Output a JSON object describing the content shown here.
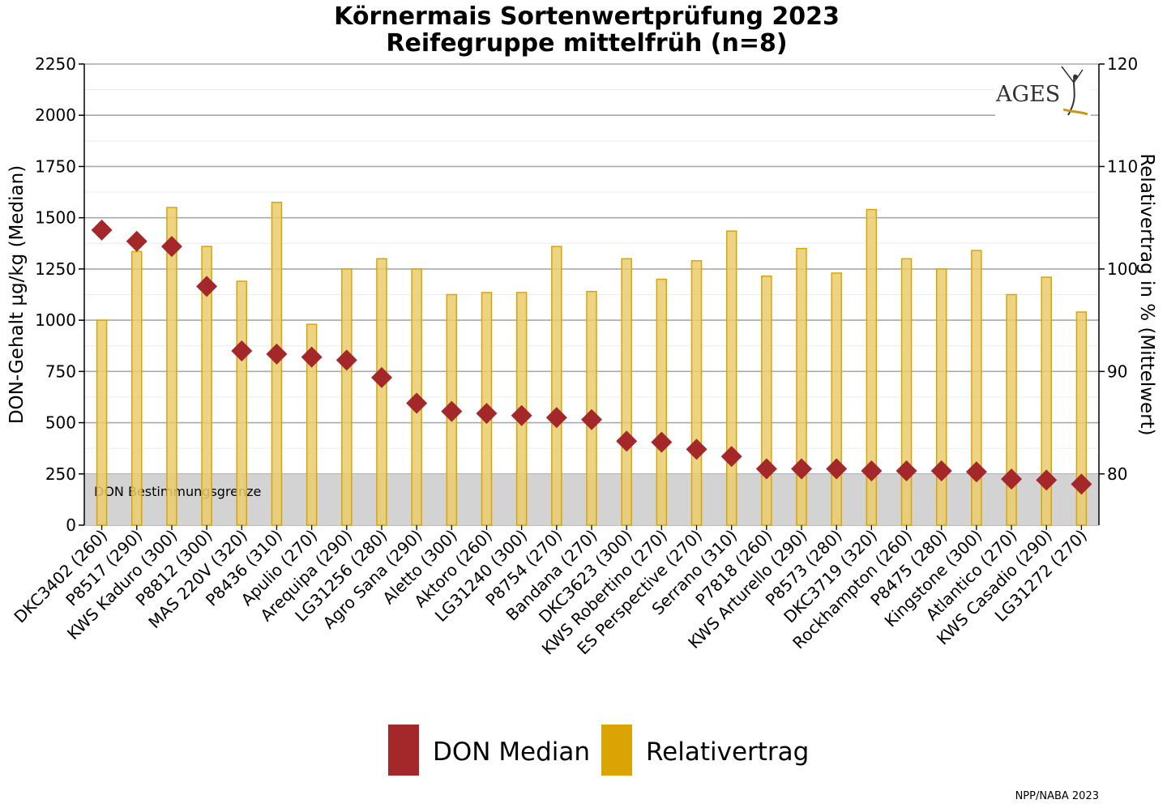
{
  "chart_data": {
    "type": "bar",
    "title": [
      "Körnermais Sortenwertprüfung 2023",
      "Reifegruppe mittelfrüh (n=8)"
    ],
    "ylabel_left": "DON-Gehalt µg/kg (Median)",
    "ylabel_right": "Relativertrag in % (Mittelwert)",
    "ylim_left": [
      0,
      2250
    ],
    "yticks_left": [
      0,
      250,
      500,
      750,
      1000,
      1250,
      1500,
      1750,
      2000,
      2250
    ],
    "ylim_right": [
      75,
      120
    ],
    "yticks_right": [
      80,
      90,
      100,
      110,
      120
    ],
    "grid": true,
    "categories": [
      "DKC3402 (260)",
      "P8517 (290)",
      "KWS Kaduro (300)",
      "P8812 (300)",
      "MAS 220V (320)",
      "P8436 (310)",
      "Apulio (270)",
      "Arequipa (290)",
      "LG31256 (280)",
      "Agro Sana (290)",
      "Aletto (300)",
      "Aktoro (260)",
      "LG31240 (300)",
      "P8754 (270)",
      "Bandana (270)",
      "DKC3623 (300)",
      "KWS Robertino (270)",
      "ES Perspective (270)",
      "Serrano (310)",
      "P7818 (260)",
      "KWS Arturello (290)",
      "P8573 (280)",
      "DKC3719 (320)",
      "Rockhampton (260)",
      "P8475 (280)",
      "Kingstone (300)",
      "Atlantico (270)",
      "KWS Casadio (290)",
      "LG31272 (270)"
    ],
    "series": [
      {
        "name": "DON Median",
        "type": "scatter",
        "axis": "left",
        "color": "#a4282a",
        "marker": "diamond",
        "values": [
          1440,
          1385,
          1360,
          1165,
          850,
          835,
          820,
          805,
          720,
          595,
          555,
          545,
          535,
          525,
          515,
          410,
          405,
          370,
          335,
          275,
          275,
          275,
          265,
          265,
          265,
          260,
          225,
          220,
          200
        ]
      },
      {
        "name": "Relativertrag",
        "type": "bar",
        "axis": "right",
        "color": "#daa504",
        "fill": "#e9cd6e",
        "values": [
          95.0,
          101.7,
          106.0,
          102.2,
          98.8,
          106.5,
          94.6,
          100.0,
          101.0,
          100.0,
          97.5,
          97.7,
          97.7,
          102.2,
          97.8,
          101.0,
          99.0,
          100.8,
          103.7,
          99.3,
          102.0,
          99.6,
          105.8,
          101.0,
          100.0,
          101.8,
          97.5,
          99.2,
          95.8
        ]
      }
    ],
    "annotation": {
      "text": "DON Bestimmungsgrenze",
      "below_value": 250,
      "axis": "left",
      "color": "#d3d3d3"
    },
    "legend": {
      "position": "bottom",
      "items": [
        "DON Median",
        "Relativertrag"
      ]
    },
    "logo": "AGES",
    "source": "NPP/NABA 2023"
  }
}
